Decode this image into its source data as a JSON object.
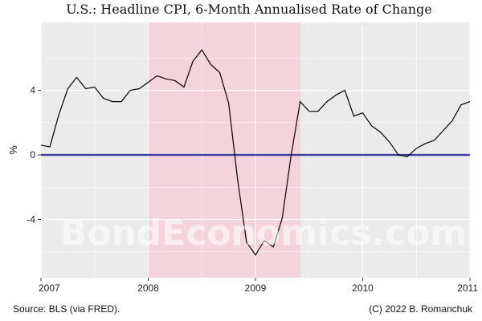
{
  "chart_data": {
    "type": "line",
    "title": "U.S.: Headline CPI, 6-Month Annualised Rate of Change",
    "ylabel": "%",
    "xlim": [
      2007.0,
      2011.0
    ],
    "ylim": [
      -7.6,
      8.2
    ],
    "x_ticks": [
      2007,
      2008,
      2009,
      2010,
      2011
    ],
    "y_ticks": [
      -4,
      0,
      4
    ],
    "grid": true,
    "recession": {
      "start": 2008.0,
      "end": 2009.42,
      "color": "#f4d4dc"
    },
    "zero_line": {
      "value": 0,
      "color": "#3f3f9f"
    },
    "series": [
      {
        "color": "#000000",
        "x": [
          2007.0,
          2007.083,
          2007.167,
          2007.25,
          2007.333,
          2007.417,
          2007.5,
          2007.583,
          2007.667,
          2007.75,
          2007.833,
          2007.917,
          2008.0,
          2008.083,
          2008.167,
          2008.25,
          2008.333,
          2008.417,
          2008.5,
          2008.583,
          2008.667,
          2008.75,
          2008.833,
          2008.917,
          2009.0,
          2009.083,
          2009.167,
          2009.25,
          2009.333,
          2009.417,
          2009.5,
          2009.583,
          2009.667,
          2009.75,
          2009.833,
          2009.917,
          2010.0,
          2010.083,
          2010.167,
          2010.25,
          2010.333,
          2010.417,
          2010.5,
          2010.583,
          2010.667,
          2010.75,
          2010.833,
          2010.917,
          2011.0
        ],
        "y": [
          0.6,
          0.5,
          2.5,
          4.1,
          4.8,
          4.1,
          4.2,
          3.5,
          3.3,
          3.3,
          4.0,
          4.1,
          4.5,
          4.9,
          4.7,
          4.6,
          4.2,
          5.8,
          6.5,
          5.6,
          5.1,
          3.2,
          -1.5,
          -5.4,
          -6.2,
          -5.3,
          -5.7,
          -3.9,
          0.0,
          3.3,
          2.7,
          2.7,
          3.3,
          3.7,
          4.0,
          2.4,
          2.6,
          1.8,
          1.4,
          0.8,
          0.0,
          -0.1,
          0.4,
          0.7,
          0.9,
          1.5,
          2.1,
          3.1,
          3.3
        ]
      }
    ]
  },
  "watermark": "BondEconomics.com",
  "footer": {
    "source": "Source: BLS (via FRED).",
    "credit": "(C) 2022 B. Romanchuk"
  }
}
